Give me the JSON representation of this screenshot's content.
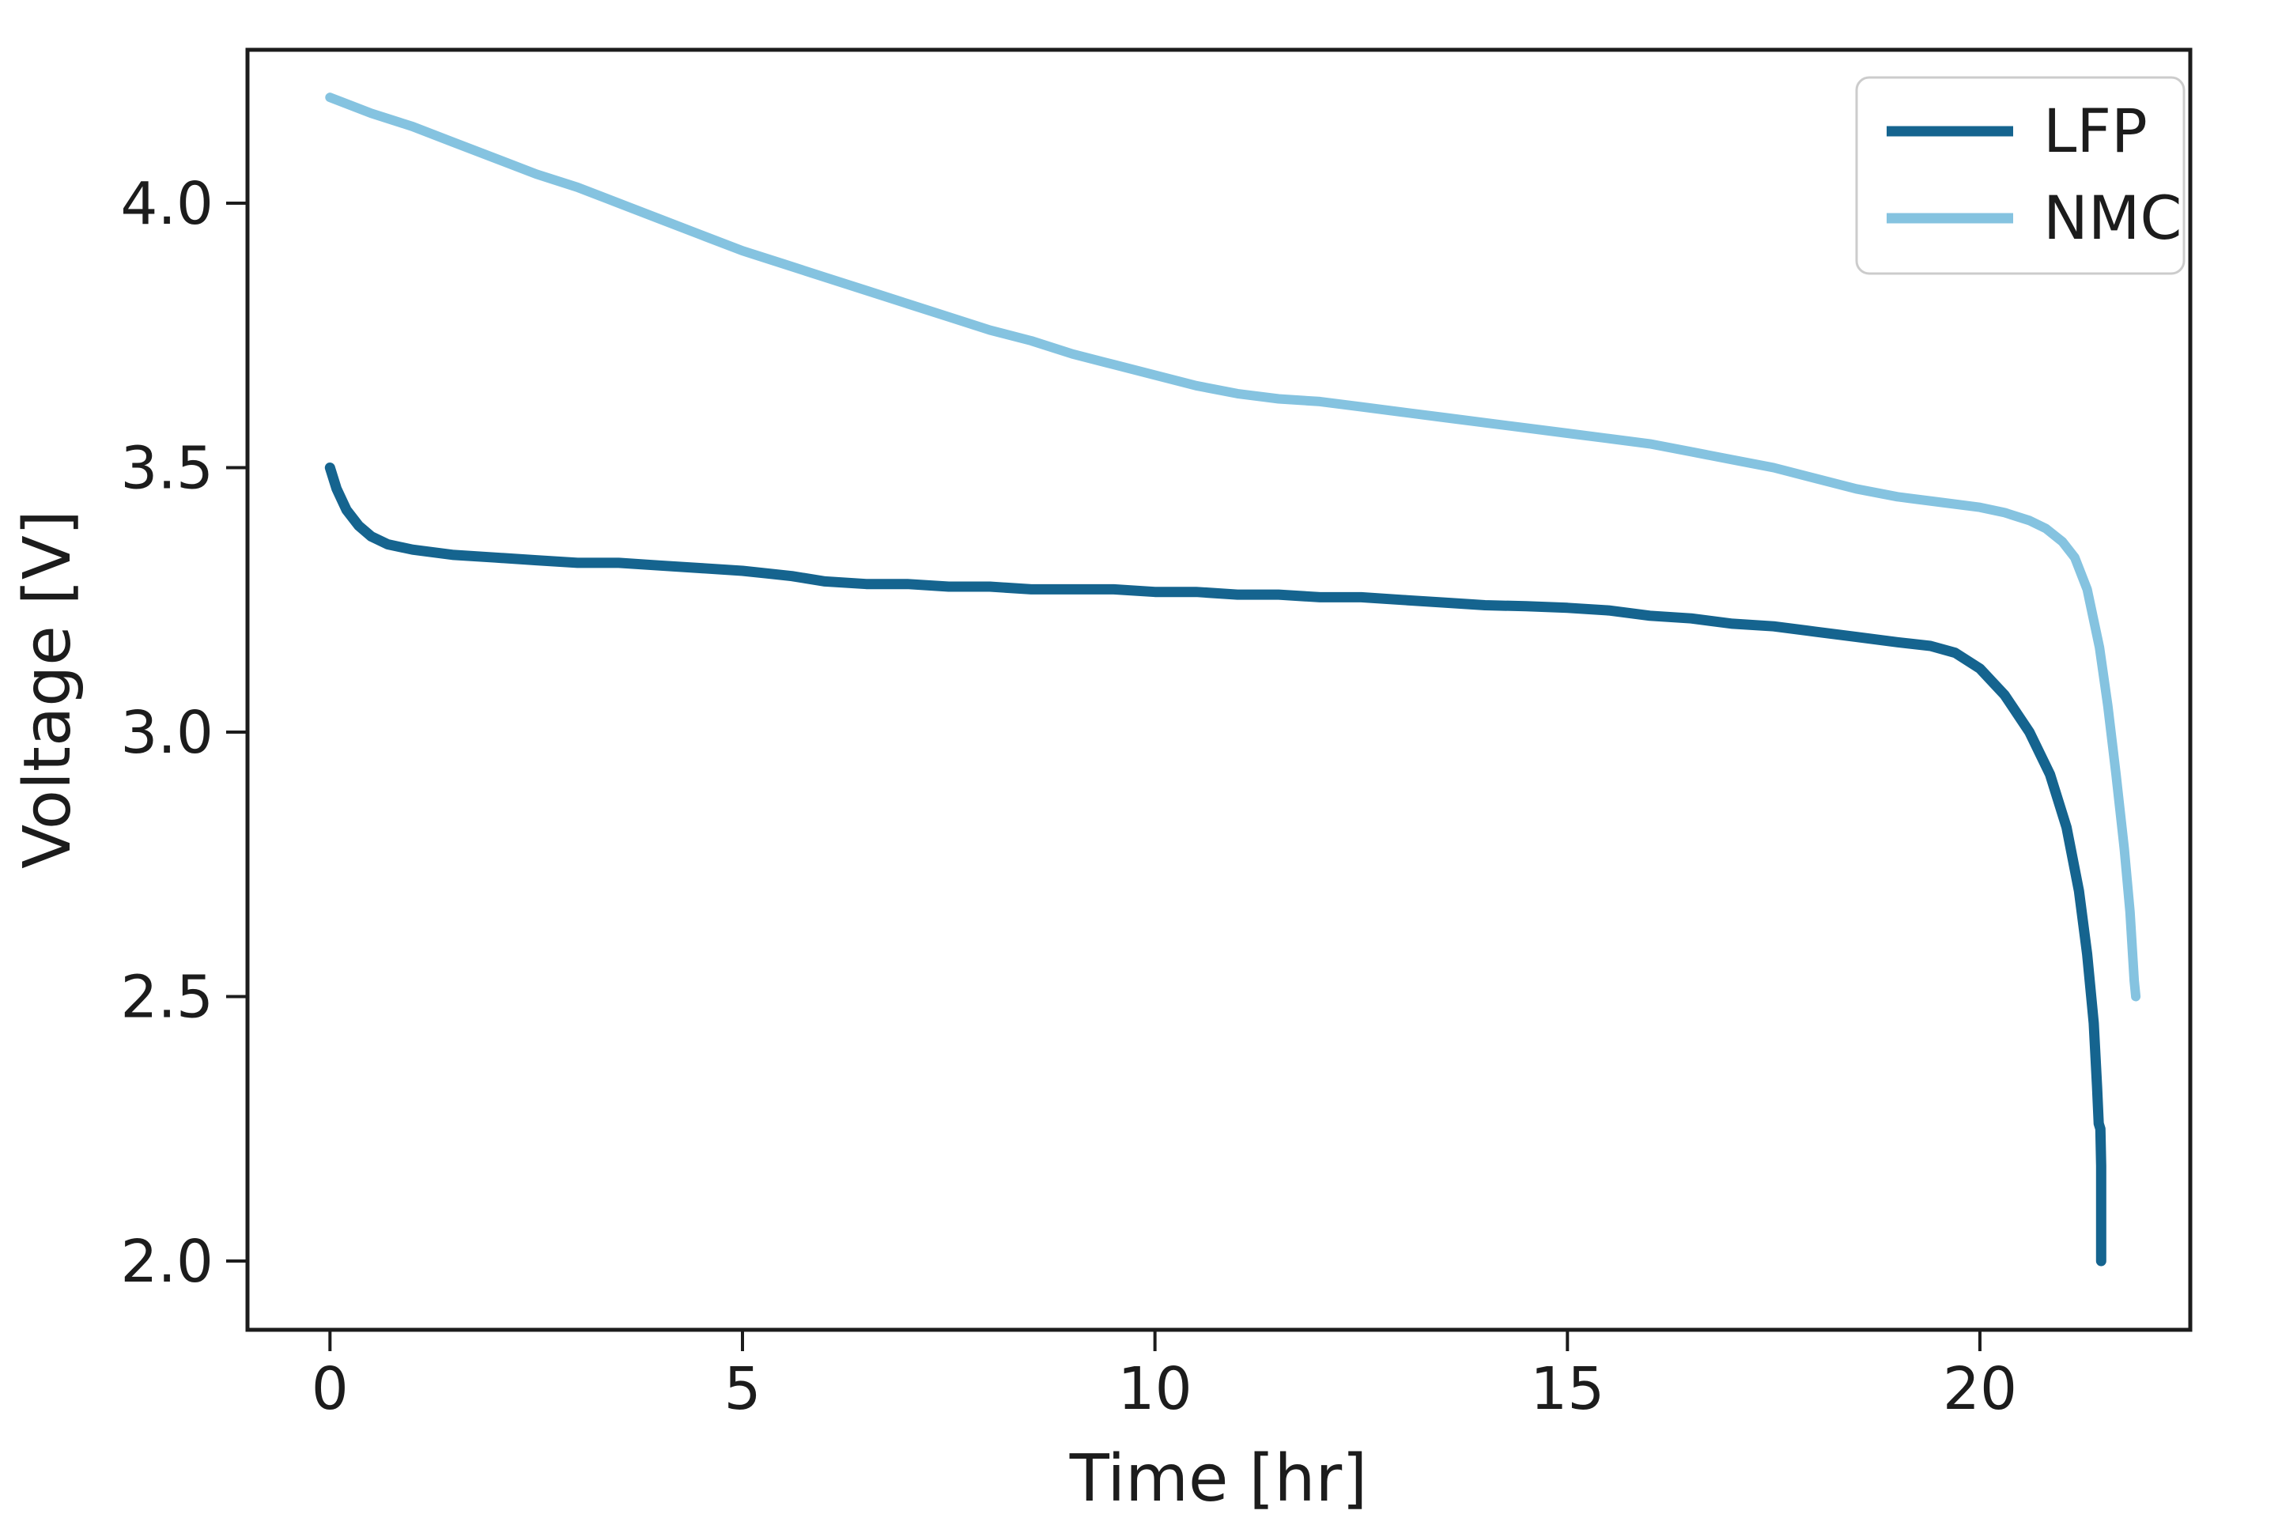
{
  "chart_data": {
    "type": "line",
    "title": "",
    "xlabel": "Time [hr]",
    "ylabel": "Voltage [V]",
    "xlim": [
      -1.0,
      22.55
    ],
    "ylim": [
      1.87,
      4.29
    ],
    "xticks": [
      0,
      5,
      10,
      15,
      20
    ],
    "xtick_labels": [
      "0",
      "5",
      "10",
      "15",
      "20"
    ],
    "yticks": [
      2.0,
      2.5,
      3.0,
      3.5,
      4.0
    ],
    "ytick_labels": [
      "2.0",
      "2.5",
      "3.0",
      "3.5",
      "4.0"
    ],
    "grid": false,
    "legend_position": "upper right",
    "axis_color": "#1c1c1c",
    "legend_border_color": "#cccccc",
    "series": [
      {
        "name": "LFP",
        "color": "#15648f",
        "linewidth": 13,
        "points": [
          [
            0.0,
            3.5
          ],
          [
            0.08,
            3.46
          ],
          [
            0.2,
            3.42
          ],
          [
            0.35,
            3.39
          ],
          [
            0.5,
            3.37
          ],
          [
            0.7,
            3.355
          ],
          [
            1.0,
            3.345
          ],
          [
            1.5,
            3.335
          ],
          [
            2.0,
            3.33
          ],
          [
            2.5,
            3.325
          ],
          [
            3.0,
            3.32
          ],
          [
            3.5,
            3.32
          ],
          [
            4.0,
            3.315
          ],
          [
            4.5,
            3.31
          ],
          [
            5.0,
            3.305
          ],
          [
            5.3,
            3.3
          ],
          [
            5.6,
            3.295
          ],
          [
            6.0,
            3.285
          ],
          [
            6.5,
            3.28
          ],
          [
            7.0,
            3.28
          ],
          [
            7.5,
            3.275
          ],
          [
            8.0,
            3.275
          ],
          [
            8.5,
            3.27
          ],
          [
            9.0,
            3.27
          ],
          [
            9.5,
            3.27
          ],
          [
            10.0,
            3.265
          ],
          [
            10.5,
            3.265
          ],
          [
            11.0,
            3.26
          ],
          [
            11.5,
            3.26
          ],
          [
            12.0,
            3.255
          ],
          [
            12.5,
            3.255
          ],
          [
            13.0,
            3.25
          ],
          [
            13.5,
            3.245
          ],
          [
            14.0,
            3.24
          ],
          [
            14.5,
            3.238
          ],
          [
            15.0,
            3.235
          ],
          [
            15.5,
            3.23
          ],
          [
            16.0,
            3.22
          ],
          [
            16.5,
            3.215
          ],
          [
            17.0,
            3.205
          ],
          [
            17.5,
            3.2
          ],
          [
            18.0,
            3.19
          ],
          [
            18.5,
            3.18
          ],
          [
            19.0,
            3.17
          ],
          [
            19.4,
            3.163
          ],
          [
            19.7,
            3.15
          ],
          [
            20.0,
            3.12
          ],
          [
            20.3,
            3.07
          ],
          [
            20.6,
            3.0
          ],
          [
            20.85,
            2.92
          ],
          [
            21.05,
            2.82
          ],
          [
            21.2,
            2.7
          ],
          [
            21.3,
            2.58
          ],
          [
            21.38,
            2.45
          ],
          [
            21.42,
            2.33
          ],
          [
            21.44,
            2.26
          ],
          [
            21.46,
            2.25
          ],
          [
            21.47,
            2.18
          ],
          [
            21.47,
            2.0
          ]
        ]
      },
      {
        "name": "NMC",
        "color": "#85c3e0",
        "linewidth": 12,
        "points": [
          [
            0.0,
            4.2
          ],
          [
            0.5,
            4.17
          ],
          [
            1.0,
            4.145
          ],
          [
            1.5,
            4.115
          ],
          [
            2.0,
            4.085
          ],
          [
            2.5,
            4.055
          ],
          [
            3.0,
            4.03
          ],
          [
            3.5,
            4.0
          ],
          [
            4.0,
            3.97
          ],
          [
            4.5,
            3.94
          ],
          [
            5.0,
            3.91
          ],
          [
            5.5,
            3.885
          ],
          [
            6.0,
            3.86
          ],
          [
            6.5,
            3.835
          ],
          [
            7.0,
            3.81
          ],
          [
            7.5,
            3.785
          ],
          [
            8.0,
            3.76
          ],
          [
            8.5,
            3.74
          ],
          [
            9.0,
            3.715
          ],
          [
            9.5,
            3.695
          ],
          [
            10.0,
            3.675
          ],
          [
            10.5,
            3.655
          ],
          [
            11.0,
            3.64
          ],
          [
            11.5,
            3.63
          ],
          [
            12.0,
            3.625
          ],
          [
            12.5,
            3.615
          ],
          [
            13.0,
            3.605
          ],
          [
            13.5,
            3.595
          ],
          [
            14.0,
            3.585
          ],
          [
            14.5,
            3.575
          ],
          [
            15.0,
            3.565
          ],
          [
            15.5,
            3.555
          ],
          [
            16.0,
            3.545
          ],
          [
            16.5,
            3.53
          ],
          [
            17.0,
            3.515
          ],
          [
            17.5,
            3.5
          ],
          [
            18.0,
            3.48
          ],
          [
            18.5,
            3.46
          ],
          [
            19.0,
            3.445
          ],
          [
            19.5,
            3.435
          ],
          [
            20.0,
            3.425
          ],
          [
            20.3,
            3.415
          ],
          [
            20.6,
            3.4
          ],
          [
            20.8,
            3.385
          ],
          [
            21.0,
            3.36
          ],
          [
            21.15,
            3.33
          ],
          [
            21.3,
            3.27
          ],
          [
            21.45,
            3.16
          ],
          [
            21.55,
            3.05
          ],
          [
            21.65,
            2.92
          ],
          [
            21.75,
            2.78
          ],
          [
            21.82,
            2.66
          ],
          [
            21.87,
            2.53
          ],
          [
            21.89,
            2.5
          ]
        ]
      }
    ]
  }
}
